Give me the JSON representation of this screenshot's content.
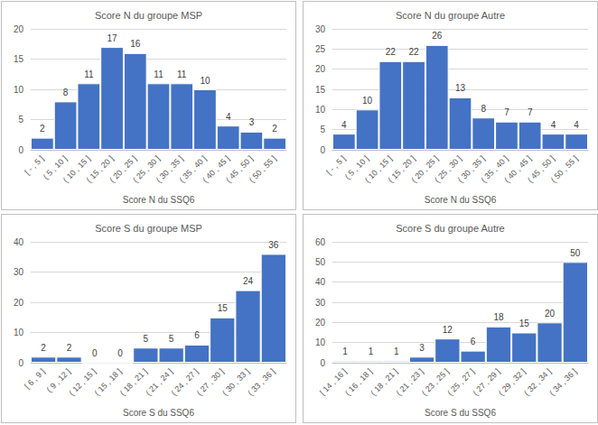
{
  "chart_data": [
    {
      "type": "bar",
      "title": "Score N du groupe MSP",
      "x_label": "Score N du SSQ6",
      "categories": [
        "[ - , 5 ]",
        "( 5 , 10 ]",
        "( 10 , 15 ]",
        "( 15 , 20 ]",
        "( 20 , 25 ]",
        "( 25 , 30 ]",
        "( 30 , 35 ]",
        "( 35 , 40 ]",
        "( 40 , 45 ]",
        "( 45 , 50 ]",
        "( 50 , 55 ]"
      ],
      "values": [
        2,
        8,
        11,
        17,
        16,
        11,
        11,
        10,
        4,
        3,
        2
      ],
      "color": "#4472c4",
      "ylim": [
        0,
        20
      ],
      "yticks": [
        0,
        5,
        10,
        15,
        20
      ],
      "grid": true,
      "data_labels": true
    },
    {
      "type": "bar",
      "title": "Score N du groupe Autre",
      "x_label": "Score N du SSQ6",
      "categories": [
        "[ - , 5 ]",
        "( 5 , 10 ]",
        "( 10 , 15 ]",
        "( 15 , 20 ]",
        "( 20 , 25 ]",
        "( 25 , 30 ]",
        "( 30 , 35 ]",
        "( 35 , 40 ]",
        "( 40 , 45 ]",
        "( 45 , 50 ]",
        "( 50 , 55 ]"
      ],
      "values": [
        4,
        10,
        22,
        22,
        26,
        13,
        8,
        7,
        7,
        4,
        4
      ],
      "color": "#4472c4",
      "ylim": [
        0,
        30
      ],
      "yticks": [
        0,
        5,
        10,
        15,
        20,
        25,
        30
      ],
      "grid": true,
      "data_labels": true
    },
    {
      "type": "bar",
      "title": "Score S du groupe MSP",
      "x_label": "Score S du SSQ6",
      "categories": [
        "[ 6 , 9 ]",
        "( 9 , 12 ]",
        "( 12 , 15 ]",
        "( 15 , 18 ]",
        "( 18 , 21 ]",
        "( 21 , 24 ]",
        "( 24 , 27 ]",
        "( 27 , 30 ]",
        "( 30 , 33 ]",
        "( 33 , 36 ]"
      ],
      "values": [
        2,
        2,
        0,
        0,
        5,
        5,
        6,
        15,
        24,
        36
      ],
      "color": "#4472c4",
      "ylim": [
        0,
        40
      ],
      "yticks": [
        0,
        10,
        20,
        30,
        40
      ],
      "grid": true,
      "data_labels": true
    },
    {
      "type": "bar",
      "title": "Score S du groupe Autre",
      "x_label": "Score S du SSQ6",
      "categories": [
        "[ 14 , 16 ]",
        "( 16 , 18 ]",
        "( 18 , 21 ]",
        "( 21 , 23 ]",
        "( 23 , 25 ]",
        "( 25 , 27 ]",
        "( 27 , 29 ]",
        "( 29 , 32 ]",
        "( 32 , 34 ]",
        "( 34 , 36 ]"
      ],
      "values": [
        1,
        1,
        1,
        3,
        12,
        6,
        18,
        15,
        20,
        50
      ],
      "color": "#4472c4",
      "ylim": [
        0,
        60
      ],
      "yticks": [
        0,
        10,
        20,
        30,
        40,
        50,
        60
      ],
      "grid": true,
      "data_labels": true
    }
  ]
}
